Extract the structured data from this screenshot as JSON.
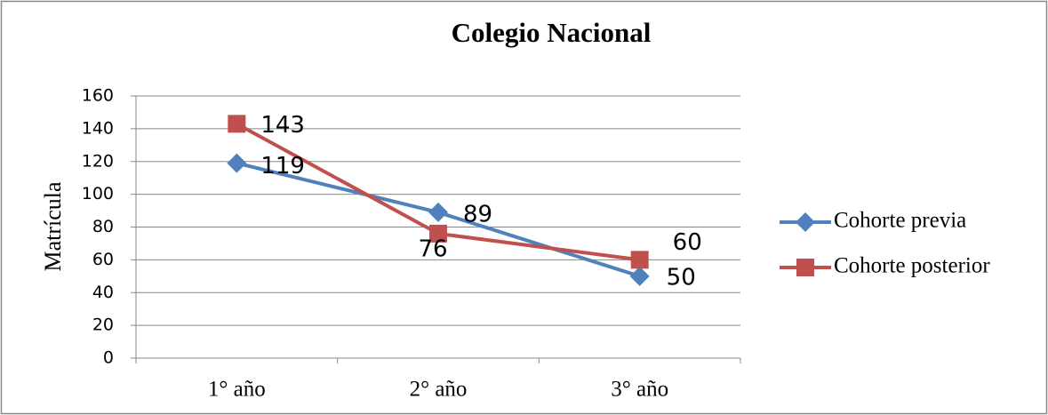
{
  "chart_data": {
    "type": "line",
    "title": "Colegio Nacional",
    "y_label": "Matrícula",
    "categories": [
      "1° año",
      "2° año",
      "3° año"
    ],
    "series": [
      {
        "name": "Cohorte previa",
        "color": "#4f81bd",
        "marker": "diamond",
        "values": [
          119,
          89,
          50
        ]
      },
      {
        "name": "Cohorte posterior",
        "color": "#c0504d",
        "marker": "square",
        "values": [
          143,
          76,
          60
        ]
      }
    ],
    "ylim": [
      0,
      160
    ],
    "yticks": [
      0,
      20,
      40,
      60,
      80,
      100,
      120,
      140,
      160
    ],
    "grid": true,
    "legend": "right"
  }
}
